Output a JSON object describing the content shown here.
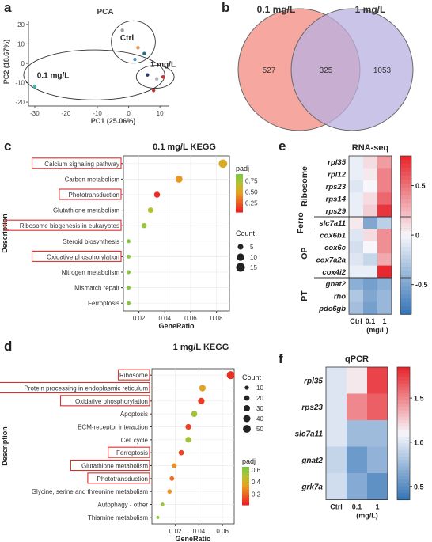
{
  "panel_labels": {
    "a": "a",
    "b": "b",
    "c": "c",
    "d": "d",
    "e": "e",
    "f": "f"
  },
  "chart_data": [
    {
      "id": "a",
      "type": "scatter",
      "title": "PCA",
      "xlabel": "PC1 (25.06%)",
      "ylabel": "PC2 (18.67%)",
      "xlim": [
        -32,
        13
      ],
      "ylim": [
        -22,
        22
      ],
      "xticks": [
        -30,
        -20,
        -10,
        0,
        10
      ],
      "yticks": [
        -20,
        -10,
        0,
        10,
        20
      ],
      "ytick_labels": [
        "-20",
        "-10",
        "0",
        "10",
        "20"
      ],
      "group_labels": [
        "Ctrl",
        "1 mg/L",
        "0.1 mg/L"
      ],
      "points": [
        {
          "x": -2,
          "y": 17,
          "group": "Ctrl",
          "color": "#a0a0a0"
        },
        {
          "x": 3,
          "y": 8,
          "group": "Ctrl",
          "color": "#e89850"
        },
        {
          "x": 5,
          "y": 5,
          "group": "Ctrl",
          "color": "#1f6f8b"
        },
        {
          "x": 6,
          "y": -6,
          "group": "1 mg/L",
          "color": "#283870"
        },
        {
          "x": 9,
          "y": -8,
          "group": "1 mg/L",
          "color": "#b0b0b0"
        },
        {
          "x": 11,
          "y": -7,
          "group": "1 mg/L",
          "color": "#cc3333"
        },
        {
          "x": -30,
          "y": -12,
          "group": "0.1 mg/L",
          "color": "#40b8b0"
        },
        {
          "x": 2,
          "y": 2,
          "group": "0.1 mg/L",
          "color": "#5090c0"
        },
        {
          "x": 8,
          "y": -14,
          "group": "0.1 mg/L",
          "color": "#cc3333"
        }
      ]
    },
    {
      "id": "b",
      "type": "venn",
      "sets": [
        {
          "name": "0.1 mg/L",
          "unique": 527,
          "color": "#f6a8a0"
        },
        {
          "name": "1 mg/L",
          "unique": 1053,
          "color": "#b8b0e0"
        }
      ],
      "overlap": 325
    },
    {
      "id": "c",
      "type": "scatter",
      "title": "0.1 mg/L KEGG",
      "xlabel": "GeneRatio",
      "ylabel": "Description",
      "xlim": [
        0.008,
        0.09
      ],
      "xticks": [
        0.02,
        0.04,
        0.06,
        0.08
      ],
      "xtick_labels": [
        "0.02",
        "0.04",
        "0.06",
        "0.08"
      ],
      "categories": [
        "Calcium signaling pathway",
        "Carbon metabolism",
        "Phototransduction",
        "Glutathione metabolism",
        "Ribosome biogenesis in eukaryotes",
        "Steroid biosynthesis",
        "Oxidative phosphorylation",
        "Nitrogen metabolism",
        "Mismatch repair",
        "Ferroptosis"
      ],
      "boxed": [
        true,
        false,
        true,
        false,
        true,
        false,
        true,
        false,
        false,
        false
      ],
      "gene_ratio": [
        0.085,
        0.051,
        0.034,
        0.029,
        0.024,
        0.012,
        0.012,
        0.012,
        0.012,
        0.012
      ],
      "count": [
        14,
        9,
        6,
        5,
        4,
        2,
        2,
        2,
        2,
        2
      ],
      "padj": [
        0.55,
        0.45,
        0.08,
        0.7,
        0.8,
        0.85,
        0.85,
        0.85,
        0.85,
        0.85
      ],
      "color_legend": {
        "title": "padj",
        "ticks": [
          0.75,
          0.5,
          0.25
        ],
        "tick_labels": [
          "0.75",
          "0.50",
          "0.25"
        ],
        "range": [
          0.05,
          0.9
        ]
      },
      "size_legend": {
        "title": "Count",
        "values": [
          5,
          10,
          15
        ]
      }
    },
    {
      "id": "d",
      "type": "scatter",
      "title": "1 mg/L KEGG",
      "xlabel": "GeneRatio",
      "ylabel": "Description",
      "xlim": [
        0.0,
        0.07
      ],
      "xticks": [
        0.02,
        0.04,
        0.06
      ],
      "xtick_labels": [
        "0.02",
        "0.04",
        "0.06"
      ],
      "categories": [
        "Ribosome",
        "Protein processing in endoplasmic reticulum",
        "Oxidative phosphorylation",
        "Apoptosis",
        "ECM-receptor interaction",
        "Cell cycle",
        "Ferroptosis",
        "Glutathione metabolism",
        "Phototransduction",
        "Glycine, serine and threonine metabolism",
        "Autophagy - other",
        "Thiamine metabolism"
      ],
      "boxed": [
        true,
        true,
        true,
        false,
        false,
        false,
        true,
        true,
        true,
        false,
        false,
        false
      ],
      "gene_ratio": [
        0.067,
        0.043,
        0.042,
        0.036,
        0.031,
        0.031,
        0.025,
        0.019,
        0.017,
        0.015,
        0.009,
        0.005
      ],
      "count": [
        52,
        33,
        32,
        28,
        24,
        24,
        19,
        15,
        13,
        12,
        7,
        4
      ],
      "padj": [
        0.05,
        0.35,
        0.08,
        0.55,
        0.1,
        0.55,
        0.1,
        0.3,
        0.2,
        0.3,
        0.55,
        0.6
      ],
      "color_legend": {
        "title": "padj",
        "ticks": [
          0.6,
          0.4,
          0.2
        ],
        "tick_labels": [
          "0.6",
          "0.4",
          "0.2"
        ],
        "range": [
          0.02,
          0.65
        ]
      },
      "size_legend": {
        "title": "Count",
        "values": [
          10,
          20,
          30,
          40,
          50
        ]
      }
    },
    {
      "id": "e",
      "type": "heatmap",
      "title": "RNA-seq",
      "columns": [
        "Ctrl",
        "0.1",
        "1"
      ],
      "xlabel": "(mg/L)",
      "rows": [
        "rpl35",
        "rpl12",
        "rps23",
        "rps14",
        "rps29",
        "slc7a11",
        "cox6b1",
        "cox6c",
        "cox7a2a",
        "cox4i2",
        "gnat2",
        "rho",
        "pde6gb"
      ],
      "groups": [
        {
          "name": "Ribosome",
          "rows": 5
        },
        {
          "name": "Ferro",
          "rows": 1
        },
        {
          "name": "OP",
          "rows": 4
        },
        {
          "name": "PT",
          "rows": 3
        }
      ],
      "values": [
        [
          -0.05,
          0.1,
          0.35
        ],
        [
          -0.05,
          0.05,
          0.45
        ],
        [
          -0.1,
          0.0,
          0.45
        ],
        [
          -0.05,
          0.1,
          0.55
        ],
        [
          -0.05,
          0.15,
          0.75
        ],
        [
          0.05,
          -0.5,
          -0.25
        ],
        [
          -0.1,
          0.1,
          0.4
        ],
        [
          -0.15,
          0.0,
          0.4
        ],
        [
          -0.1,
          -0.2,
          0.3
        ],
        [
          -0.05,
          -0.05,
          0.8
        ],
        [
          -0.45,
          -0.55,
          -0.45
        ],
        [
          -0.3,
          -0.5,
          -0.4
        ],
        [
          -0.35,
          -0.55,
          -0.4
        ]
      ],
      "color_range": [
        -0.8,
        0.8
      ],
      "colorbar_ticks": [
        0.5,
        0,
        -0.5
      ],
      "colorbar_tick_labels": [
        "0.5",
        "0",
        "-0.5"
      ]
    },
    {
      "id": "f",
      "type": "heatmap",
      "title": "qPCR",
      "columns": [
        "Ctrl",
        "0.1",
        "1"
      ],
      "xlabel": "(mg/L)",
      "rows": [
        "rpl35",
        "rps23",
        "slc7a11",
        "gnat2",
        "grk7a"
      ],
      "values": [
        [
          1.0,
          1.15,
          1.75
        ],
        [
          1.0,
          1.5,
          1.65
        ],
        [
          1.0,
          0.75,
          0.75
        ],
        [
          0.9,
          0.55,
          0.7
        ],
        [
          0.95,
          0.65,
          0.5
        ]
      ],
      "color_range": [
        0.35,
        1.85
      ],
      "colorbar_ticks": [
        1.5,
        1.0,
        0.5
      ],
      "colorbar_tick_labels": [
        "1.5",
        "1.0",
        "0.5"
      ]
    }
  ]
}
